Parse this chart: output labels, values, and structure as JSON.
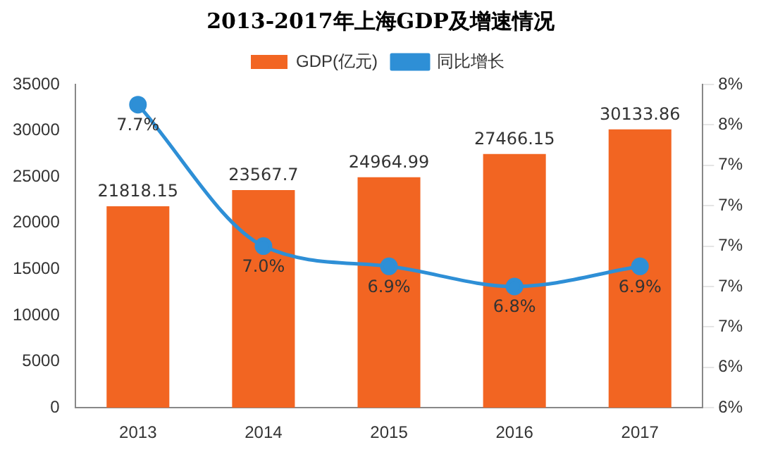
{
  "chart_data": {
    "type": "bar",
    "title": "2013-2017年上海GDP及增速情况",
    "categories": [
      "2013",
      "2014",
      "2015",
      "2016",
      "2017"
    ],
    "series": [
      {
        "name": "GDP(亿元)",
        "color": "#f26522",
        "values": [
          21818.15,
          23567.7,
          24964.99,
          27466.15,
          30133.86
        ],
        "value_labels": [
          "21818.15",
          "23567.7",
          "24964.99",
          "27466.15",
          "30133.86"
        ]
      },
      {
        "name": "同比增长",
        "type": "line",
        "axis": "y2",
        "color": "#2e8fd6",
        "values": [
          7.7,
          7.0,
          6.9,
          6.8,
          6.9
        ],
        "value_labels": [
          "7.7%",
          "7.0%",
          "6.9%",
          "6.8%",
          "6.9%"
        ]
      }
    ],
    "ylim": [
      0,
      35000
    ],
    "yticks": [
      0,
      5000,
      10000,
      15000,
      20000,
      25000,
      30000,
      35000
    ],
    "y2lim": [
      6.2,
      7.8
    ],
    "y2ticks": [
      {
        "value": 6.2,
        "label": "6%"
      },
      {
        "value": 6.4,
        "label": "6%"
      },
      {
        "value": 6.6,
        "label": "7%"
      },
      {
        "value": 6.8,
        "label": "7%"
      },
      {
        "value": 7.0,
        "label": "7%"
      },
      {
        "value": 7.2,
        "label": "7%"
      },
      {
        "value": 7.4,
        "label": "7%"
      },
      {
        "value": 7.6,
        "label": "8%"
      },
      {
        "value": 7.8,
        "label": "8%"
      }
    ],
    "legend": "top",
    "grid": false,
    "marker": "circle",
    "line_style": "solid"
  }
}
